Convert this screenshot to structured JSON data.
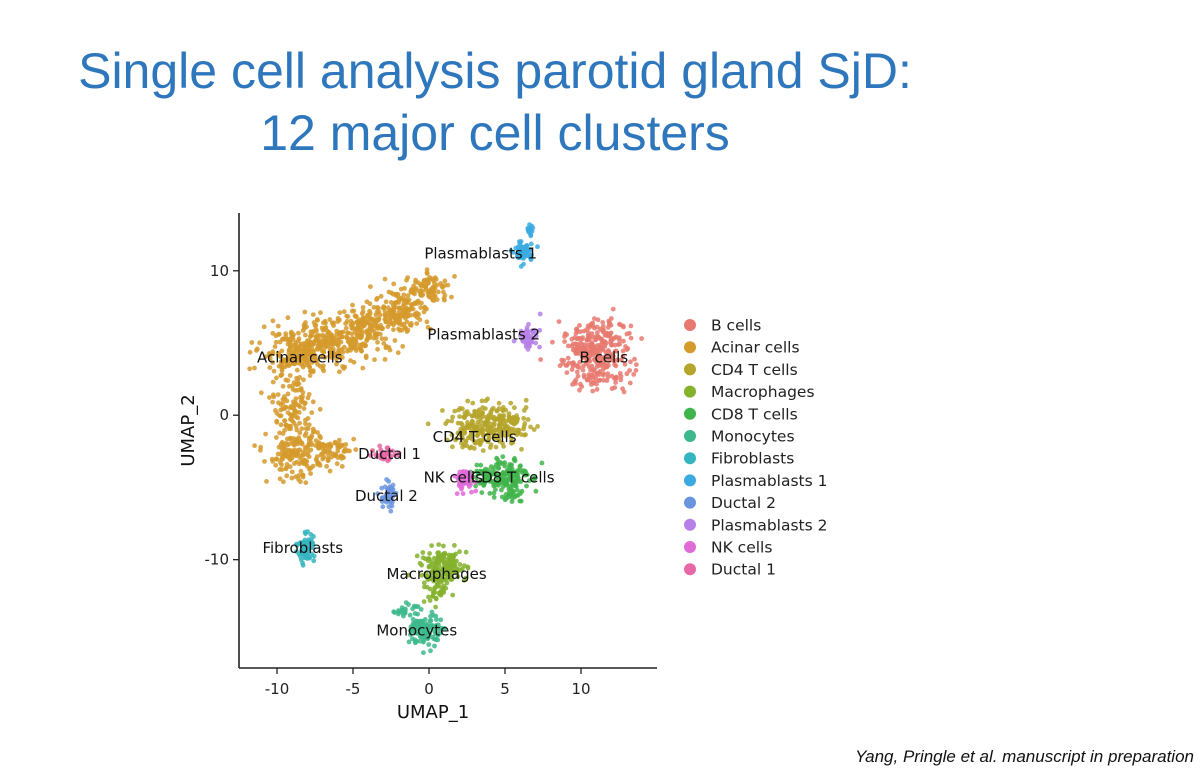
{
  "slide": {
    "title_line1": "Single cell analysis parotid gland SjD:",
    "title_line2": "12 major cell clusters",
    "citation": "Yang, Pringle et al. manuscript in preparation"
  },
  "chart_data": {
    "type": "scatter",
    "title": "",
    "xlabel": "UMAP_1",
    "ylabel": "UMAP_2",
    "xlim": [
      -12.5,
      15
    ],
    "ylim": [
      -17.5,
      14
    ],
    "x_ticks": [
      -10,
      -5,
      0,
      5,
      10
    ],
    "y_ticks": [
      -10,
      0,
      10
    ],
    "legend_position": "right",
    "grid": false,
    "series": [
      {
        "name": "B cells",
        "color": "#e8796f",
        "label_pos": [
          11.5,
          4
        ]
      },
      {
        "name": "Acinar cells",
        "color": "#d59a2c",
        "label_pos": [
          -8.5,
          4
        ]
      },
      {
        "name": "CD4 T cells",
        "color": "#b5a52a",
        "label_pos": [
          3,
          -1.5
        ]
      },
      {
        "name": "Macrophages",
        "color": "#84b22d",
        "label_pos": [
          0.5,
          -11
        ]
      },
      {
        "name": "CD8 T cells",
        "color": "#3fb44a",
        "label_pos": [
          5.5,
          -4.3
        ]
      },
      {
        "name": "Monocytes",
        "color": "#3db88c",
        "label_pos": [
          -0.8,
          -14.9
        ]
      },
      {
        "name": "Fibroblasts",
        "color": "#35b5bf",
        "label_pos": [
          -8.3,
          -9.2
        ]
      },
      {
        "name": "Plasmablasts 1",
        "color": "#3aaae0",
        "label_pos": [
          3.4,
          11.2
        ]
      },
      {
        "name": "Ductal 2",
        "color": "#6a94df",
        "label_pos": [
          -2.8,
          -5.6
        ]
      },
      {
        "name": "Plasmablasts 2",
        "color": "#b580e8",
        "label_pos": [
          3.6,
          5.6
        ]
      },
      {
        "name": "NK cells",
        "color": "#e06ad8",
        "label_pos": [
          1.6,
          -4.3
        ]
      },
      {
        "name": "Ductal 1",
        "color": "#e868a7",
        "label_pos": [
          -2.6,
          -2.7
        ]
      }
    ]
  }
}
